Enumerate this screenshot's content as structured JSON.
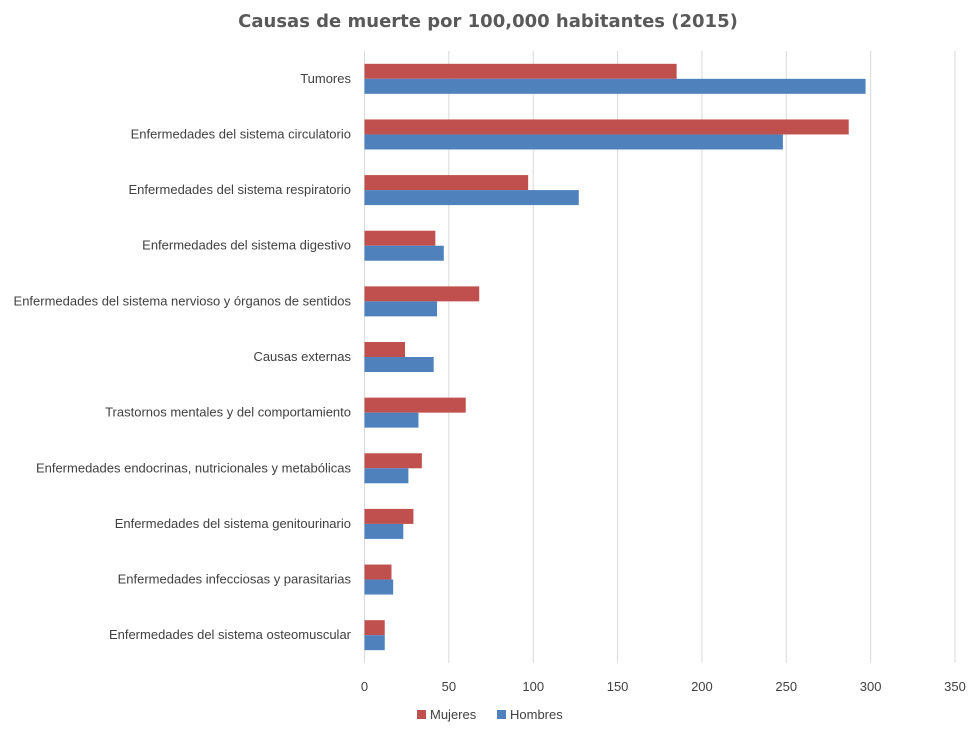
{
  "chart_data": {
    "type": "bar",
    "orientation": "horizontal",
    "title": "Causas de muerte por 100,000 habitantes (2015)",
    "xlabel": "",
    "ylabel": "",
    "xlim": [
      0,
      350
    ],
    "xticks": [
      0,
      50,
      100,
      150,
      200,
      250,
      300,
      350
    ],
    "grid": true,
    "legend_position": "bottom",
    "categories": [
      "Tumores",
      "Enfermedades del sistema circulatorio",
      "Enfermedades del sistema respiratorio",
      "Enfermedades del sistema digestivo",
      "Enfermedades del sistema nervioso y órganos de sentidos",
      "Causas externas",
      "Trastornos mentales y del comportamiento",
      "Enfermedades endocrinas, nutricionales y metabólicas",
      "Enfermedades del sistema genitourinario",
      "Enfermedades infecciosas y parasitarias",
      "Enfermedades del sistema osteomuscular"
    ],
    "series": [
      {
        "name": "Mujeres",
        "color": "#c0504d",
        "values": [
          185,
          287,
          97,
          42,
          68,
          24,
          60,
          34,
          29,
          16,
          12
        ]
      },
      {
        "name": "Hombres",
        "color": "#4f81bd",
        "values": [
          297,
          248,
          127,
          47,
          43,
          41,
          32,
          26,
          23,
          17,
          12
        ]
      }
    ]
  }
}
